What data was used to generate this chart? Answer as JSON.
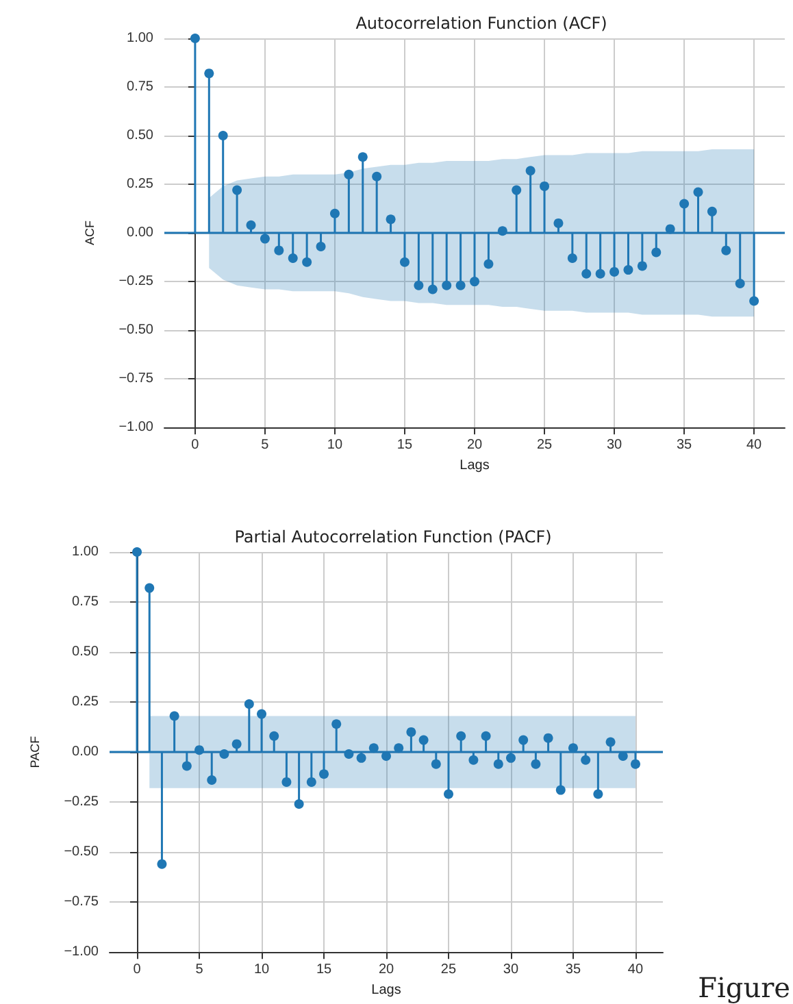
{
  "chart_data": [
    {
      "type": "lollipop",
      "title": "Autocorrelation Function (ACF)",
      "xlabel": "Lags",
      "ylabel": "ACF",
      "x": [
        0,
        1,
        2,
        3,
        4,
        5,
        6,
        7,
        8,
        9,
        10,
        11,
        12,
        13,
        14,
        15,
        16,
        17,
        18,
        19,
        20,
        21,
        22,
        23,
        24,
        25,
        26,
        27,
        28,
        29,
        30,
        31,
        32,
        33,
        34,
        35,
        36,
        37,
        38,
        39,
        40
      ],
      "series": [
        {
          "color": "#1f77b4",
          "values": [
            1.0,
            0.82,
            0.5,
            0.22,
            0.04,
            -0.03,
            -0.09,
            -0.13,
            -0.15,
            -0.07,
            0.1,
            0.3,
            0.39,
            0.29,
            0.07,
            -0.15,
            -0.27,
            -0.29,
            -0.27,
            -0.27,
            -0.25,
            -0.16,
            0.01,
            0.22,
            0.32,
            0.24,
            0.05,
            -0.13,
            -0.21,
            -0.21,
            -0.2,
            -0.19,
            -0.17,
            -0.1,
            0.02,
            0.15,
            0.21,
            0.11,
            -0.09,
            -0.26,
            -0.35
          ],
          "upper": [
            null,
            0.18,
            0.24,
            0.27,
            0.28,
            0.29,
            0.29,
            0.3,
            0.3,
            0.3,
            0.3,
            0.31,
            0.33,
            0.34,
            0.35,
            0.35,
            0.36,
            0.36,
            0.37,
            0.37,
            0.37,
            0.37,
            0.38,
            0.38,
            0.39,
            0.4,
            0.4,
            0.4,
            0.41,
            0.41,
            0.41,
            0.41,
            0.42,
            0.42,
            0.42,
            0.42,
            0.42,
            0.43,
            0.43,
            0.43,
            0.43
          ],
          "lower": [
            null,
            -0.18,
            -0.24,
            -0.27,
            -0.28,
            -0.29,
            -0.29,
            -0.3,
            -0.3,
            -0.3,
            -0.3,
            -0.31,
            -0.33,
            -0.34,
            -0.35,
            -0.35,
            -0.36,
            -0.36,
            -0.37,
            -0.37,
            -0.37,
            -0.37,
            -0.38,
            -0.38,
            -0.39,
            -0.4,
            -0.4,
            -0.4,
            -0.41,
            -0.41,
            -0.41,
            -0.41,
            -0.42,
            -0.42,
            -0.42,
            -0.42,
            -0.42,
            -0.43,
            -0.43,
            -0.43,
            -0.43
          ]
        }
      ],
      "xlim": [
        -2.2,
        42.2
      ],
      "xticks": [
        0,
        5,
        10,
        15,
        20,
        25,
        30,
        35,
        40
      ],
      "ylim": [
        -1,
        1
      ],
      "yticks": [
        {
          "value": -1,
          "label": "−1.00"
        },
        {
          "value": -0.75,
          "label": "−0.75"
        },
        {
          "value": -0.5,
          "label": "−0.50"
        },
        {
          "value": -0.25,
          "label": "−0.25"
        },
        {
          "value": 0,
          "label": "0.00"
        },
        {
          "value": 0.25,
          "label": "0.25"
        },
        {
          "value": 0.5,
          "label": "0.50"
        },
        {
          "value": 0.75,
          "label": "0.75"
        },
        {
          "value": 1,
          "label": "1.00"
        }
      ],
      "grid": true,
      "marker": "circle",
      "ref_lines": [
        {
          "axis": "y",
          "value": 0,
          "color": "#1f77b4"
        }
      ]
    },
    {
      "type": "lollipop",
      "title": "Partial Autocorrelation Function (PACF)",
      "xlabel": "Lags",
      "ylabel": "PACF",
      "x": [
        0,
        1,
        2,
        3,
        4,
        5,
        6,
        7,
        8,
        9,
        10,
        11,
        12,
        13,
        14,
        15,
        16,
        17,
        18,
        19,
        20,
        21,
        22,
        23,
        24,
        25,
        26,
        27,
        28,
        29,
        30,
        31,
        32,
        33,
        34,
        35,
        36,
        37,
        38,
        39,
        40
      ],
      "series": [
        {
          "color": "#1f77b4",
          "values": [
            1.0,
            0.82,
            -0.56,
            0.18,
            -0.07,
            0.01,
            -0.14,
            -0.01,
            0.04,
            0.24,
            0.19,
            0.08,
            -0.15,
            -0.26,
            -0.15,
            -0.11,
            0.14,
            -0.01,
            -0.03,
            0.02,
            -0.02,
            0.02,
            0.1,
            0.06,
            -0.06,
            -0.21,
            0.08,
            -0.04,
            0.08,
            -0.06,
            -0.03,
            0.06,
            -0.06,
            0.07,
            -0.19,
            0.02,
            -0.04,
            -0.21,
            0.05,
            -0.02,
            -0.06
          ],
          "upper": [
            null,
            0.18,
            0.18,
            0.18,
            0.18,
            0.18,
            0.18,
            0.18,
            0.18,
            0.18,
            0.18,
            0.18,
            0.18,
            0.18,
            0.18,
            0.18,
            0.18,
            0.18,
            0.18,
            0.18,
            0.18,
            0.18,
            0.18,
            0.18,
            0.18,
            0.18,
            0.18,
            0.18,
            0.18,
            0.18,
            0.18,
            0.18,
            0.18,
            0.18,
            0.18,
            0.18,
            0.18,
            0.18,
            0.18,
            0.18,
            0.18
          ],
          "lower": [
            null,
            -0.18,
            -0.18,
            -0.18,
            -0.18,
            -0.18,
            -0.18,
            -0.18,
            -0.18,
            -0.18,
            -0.18,
            -0.18,
            -0.18,
            -0.18,
            -0.18,
            -0.18,
            -0.18,
            -0.18,
            -0.18,
            -0.18,
            -0.18,
            -0.18,
            -0.18,
            -0.18,
            -0.18,
            -0.18,
            -0.18,
            -0.18,
            -0.18,
            -0.18,
            -0.18,
            -0.18,
            -0.18,
            -0.18,
            -0.18,
            -0.18,
            -0.18,
            -0.18,
            -0.18,
            -0.18,
            -0.18
          ]
        }
      ],
      "xlim": [
        -2.2,
        42.2
      ],
      "xticks": [
        0,
        5,
        10,
        15,
        20,
        25,
        30,
        35,
        40
      ],
      "ylim": [
        -1,
        1
      ],
      "yticks": [
        {
          "value": -1,
          "label": "−1.00"
        },
        {
          "value": -0.75,
          "label": "−0.75"
        },
        {
          "value": -0.5,
          "label": "−0.50"
        },
        {
          "value": -0.25,
          "label": "−0.25"
        },
        {
          "value": 0,
          "label": "0.00"
        },
        {
          "value": 0.25,
          "label": "0.25"
        },
        {
          "value": 0.5,
          "label": "0.50"
        },
        {
          "value": 0.75,
          "label": "0.75"
        },
        {
          "value": 1,
          "label": "1.00"
        }
      ],
      "grid": true,
      "marker": "circle",
      "ref_lines": [
        {
          "axis": "y",
          "value": 0,
          "color": "#1f77b4"
        }
      ],
      "annotations": [
        "Figure"
      ]
    }
  ]
}
